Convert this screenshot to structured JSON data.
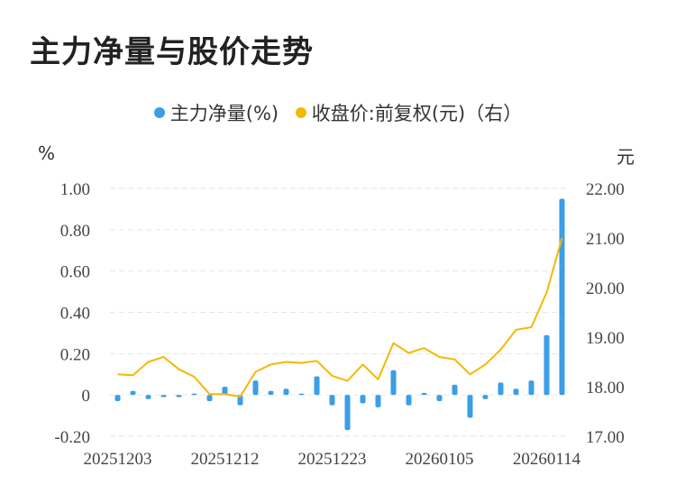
{
  "title": "主力净量与股价走势",
  "colors": {
    "bar": "#3a9ee8",
    "line": "#f5b800",
    "grid": "#e6e6e6"
  },
  "legend": [
    {
      "label": "主力净量(%)",
      "color": "#3a9ee8"
    },
    {
      "label": "收盘价:前复权(元)（右）",
      "color": "#f5b800"
    }
  ],
  "chart_data": {
    "type": "bar+line",
    "title": "主力净量与股价走势",
    "left_unit": "%",
    "right_unit": "元",
    "left_ylim": [
      -0.2,
      1.0
    ],
    "left_ticks": [
      "1.00",
      "0.80",
      "0.60",
      "0.40",
      "0.20",
      "0",
      "-0.20"
    ],
    "right_ylim": [
      17.0,
      22.0
    ],
    "right_ticks": [
      "22.00",
      "21.00",
      "20.00",
      "19.00",
      "18.00",
      "17.00"
    ],
    "x_tick_labels": [
      "20251203",
      "20251212",
      "20251223",
      "20260105",
      "20260114"
    ],
    "x_tick_index": [
      0,
      7,
      14,
      21,
      28
    ],
    "series": [
      {
        "name": "主力净量(%)",
        "kind": "bar",
        "values": [
          -0.03,
          0.02,
          -0.02,
          -0.01,
          -0.01,
          0.0,
          -0.03,
          0.04,
          -0.05,
          0.07,
          0.02,
          0.03,
          0.0,
          0.09,
          -0.05,
          -0.17,
          -0.04,
          -0.06,
          0.12,
          -0.05,
          0.01,
          -0.03,
          0.05,
          -0.11,
          -0.02,
          0.06,
          0.03,
          0.07,
          0.29,
          0.95
        ]
      },
      {
        "name": "收盘价:前复权(元)（右）",
        "kind": "line",
        "values": [
          18.25,
          18.23,
          18.5,
          18.6,
          18.35,
          18.2,
          17.85,
          17.85,
          17.8,
          18.3,
          18.45,
          18.5,
          18.48,
          18.52,
          18.22,
          18.12,
          18.45,
          18.15,
          18.88,
          18.68,
          18.78,
          18.6,
          18.55,
          18.25,
          18.45,
          18.75,
          19.15,
          19.2,
          19.9,
          21.0
        ]
      }
    ],
    "grid": true,
    "legend_position": "top"
  }
}
